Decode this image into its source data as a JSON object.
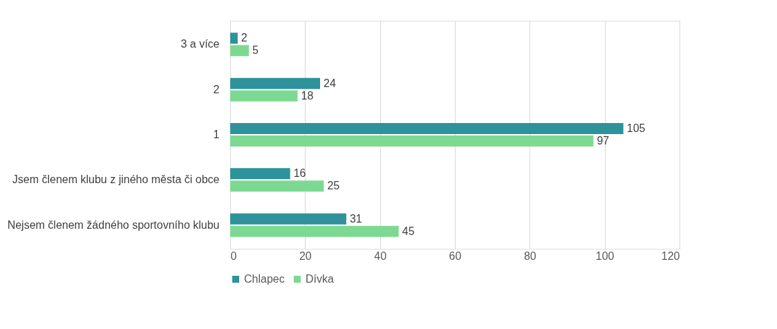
{
  "chart_data": {
    "type": "bar",
    "orientation": "horizontal",
    "categories": [
      "3 a více",
      "2",
      "1",
      "Jsem členem klubu z jiného města či obce",
      "Nejsem členem žádného sportovního klubu"
    ],
    "series": [
      {
        "name": "Chlapec",
        "color": "#2e929a",
        "values": [
          2,
          24,
          105,
          16,
          31
        ]
      },
      {
        "name": "Dívka",
        "color": "#7dd992",
        "values": [
          5,
          18,
          97,
          25,
          45
        ]
      }
    ],
    "xlim": [
      0,
      120
    ],
    "xticks": [
      0,
      20,
      40,
      60,
      80,
      100,
      120
    ],
    "grid": "x",
    "legend": "bottom",
    "data_labels": true
  }
}
